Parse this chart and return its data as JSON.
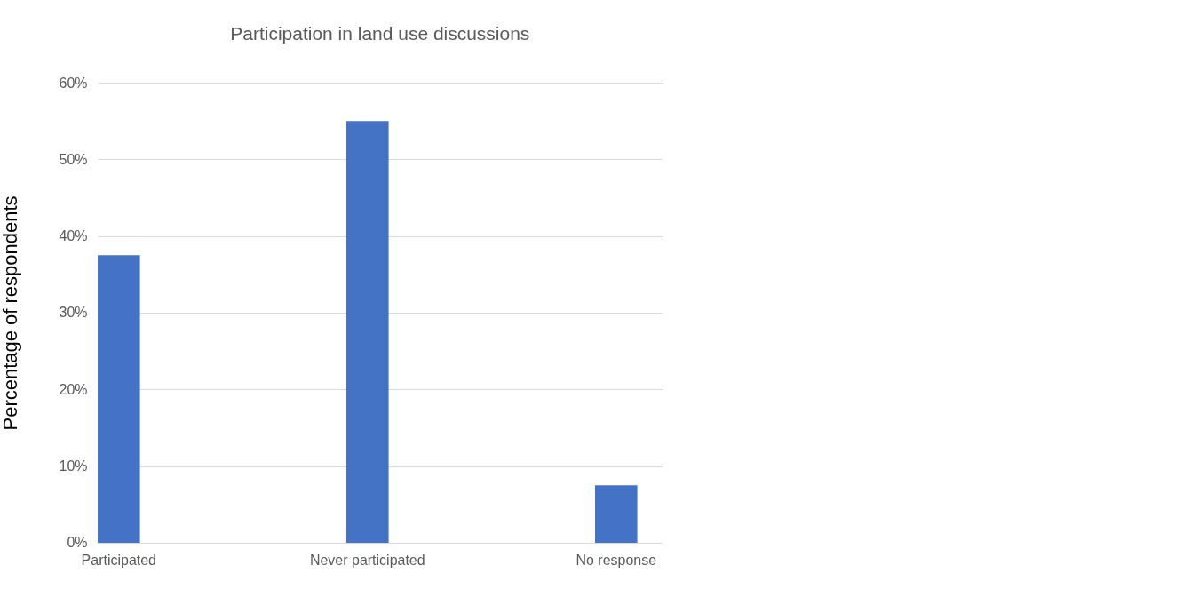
{
  "chart_data": {
    "type": "bar",
    "title": "Participation in land use discussions",
    "ylabel": "Percentage of respondents",
    "categories": [
      "Participated",
      "Never participated",
      "No response"
    ],
    "values": [
      37.5,
      55,
      7.5
    ],
    "color": "#4472c4",
    "ylim": [
      0,
      60
    ],
    "yticks": [
      {
        "value": 0,
        "label": "0%"
      },
      {
        "value": 10,
        "label": "10%"
      },
      {
        "value": 20,
        "label": "20%"
      },
      {
        "value": 30,
        "label": "30%"
      },
      {
        "value": 40,
        "label": "40%"
      },
      {
        "value": 50,
        "label": "50%"
      },
      {
        "value": 60,
        "label": "60%"
      }
    ],
    "grid": "y"
  }
}
